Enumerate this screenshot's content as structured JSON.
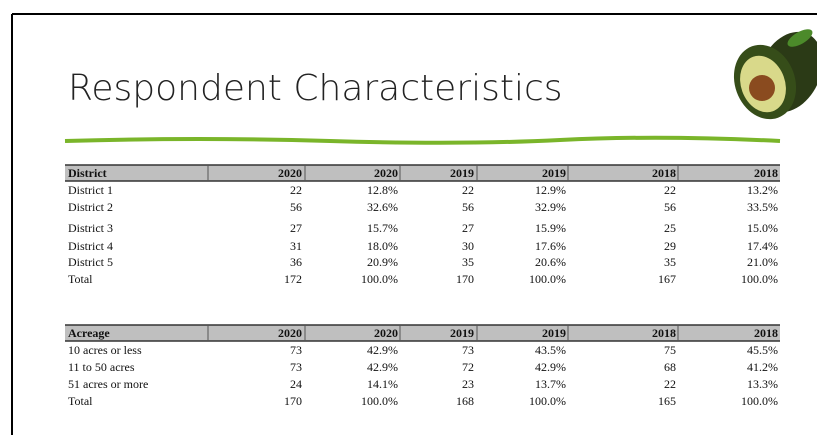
{
  "slide": {
    "title": "Respondent Characteristics",
    "tables": [
      {
        "header": [
          "District",
          "2020",
          "2020",
          "2019",
          "2019",
          "2018",
          "2018"
        ],
        "rows": [
          [
            "District 1",
            "22",
            "12.8%",
            "22",
            "12.9%",
            "22",
            "13.2%"
          ],
          [
            "District 2",
            "56",
            "32.6%",
            "56",
            "32.9%",
            "56",
            "33.5%"
          ],
          [
            "District 3",
            "27",
            "15.7%",
            "27",
            "15.9%",
            "25",
            "15.0%"
          ],
          [
            "District 4",
            "31",
            "18.0%",
            "30",
            "17.6%",
            "29",
            "17.4%"
          ],
          [
            "District 5",
            "36",
            "20.9%",
            "35",
            "20.6%",
            "35",
            "21.0%"
          ],
          [
            "Total",
            "172",
            "100.0%",
            "170",
            "100.0%",
            "167",
            "100.0%"
          ]
        ]
      },
      {
        "header": [
          "Acreage",
          "2020",
          "2020",
          "2019",
          "2019",
          "2018",
          "2018"
        ],
        "rows": [
          [
            "10 acres or less",
            "73",
            "42.9%",
            "73",
            "43.5%",
            "75",
            "45.5%"
          ],
          [
            "11 to 50 acres",
            "73",
            "42.9%",
            "72",
            "42.9%",
            "68",
            "41.2%"
          ],
          [
            "51 acres or more",
            "24",
            "14.1%",
            "23",
            "13.7%",
            "22",
            "13.3%"
          ],
          [
            "Total",
            "170",
            "100.0%",
            "168",
            "100.0%",
            "165",
            "100.0%"
          ]
        ]
      }
    ]
  }
}
